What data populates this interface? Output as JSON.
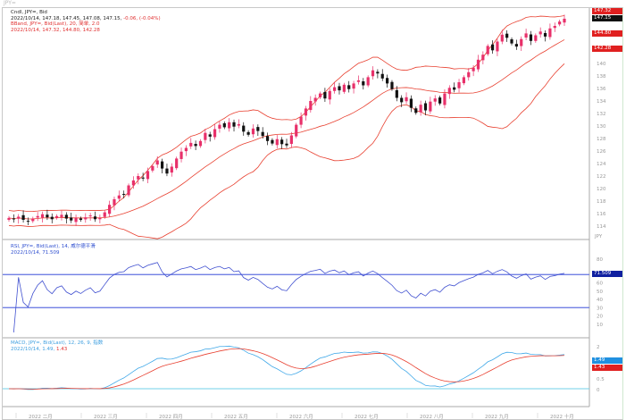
{
  "window_title": "JPY=",
  "price_panel": {
    "legend_line1": "Cndl, JPY=, Bid",
    "legend_line2_values": "2022/10/14, 147.18, 147.45, 147.08, 147.15,",
    "legend_line2_change": "-0.06, (-0.04%)",
    "legend_line3": "BBand, JPY=, Bid(Last), 20, 简单, 2.0",
    "legend_line4": "2022/10/14, 147.32, 144.80, 142.28",
    "tags": {
      "upper": "147.32",
      "last": "147.15",
      "mid": "144.80",
      "lower": "142.28"
    },
    "axis_labels": [
      "140",
      "138",
      "136",
      "134",
      "132",
      "130",
      "128",
      "126",
      "124",
      "122",
      "120",
      "118",
      "116",
      "114"
    ],
    "units_label": "JPY"
  },
  "rsi_panel": {
    "legend_line1": "RSI, JPY=, Bid(Last), 14, 威尔德平滑",
    "legend_line2": "2022/10/14, 71.509",
    "tag": "71.509",
    "axis_labels": [
      "80",
      "60",
      "50",
      "40",
      "30",
      "20",
      "10"
    ],
    "levels": [
      70,
      30
    ]
  },
  "macd_panel": {
    "legend_line1": "MACD, JPY=, Bid(Last), 12, 26, 9, 指数",
    "legend_line2_macd": "2022/10/14, 1.49,",
    "legend_line2_signal": "1.43",
    "tags": {
      "macd": "1.49",
      "signal": "1.43"
    },
    "axis_labels": [
      "2",
      "0.5",
      "0"
    ]
  },
  "x_axis": {
    "months": [
      "2022 二月",
      "2022 三月",
      "2022 四月",
      "2022 五月",
      "2022 六月",
      "2022 七月",
      "2022 八月",
      "2022 九月",
      "2022 十月"
    ]
  },
  "colors": {
    "up": "#e8306a",
    "down": "#111111",
    "band": "#e84030",
    "rsi": "#4050d0",
    "macd": "#40a8e8",
    "signal": "#e84030",
    "level": "#6070e0"
  },
  "chart_data": {
    "type": "candlestick",
    "closes": [
      115.3,
      115.1,
      115.5,
      115.0,
      114.8,
      115.2,
      115.6,
      115.9,
      115.4,
      115.1,
      115.6,
      115.8,
      115.2,
      114.9,
      115.3,
      115.0,
      115.4,
      115.7,
      115.1,
      115.3,
      116.2,
      117.4,
      118.3,
      118.9,
      119.1,
      120.5,
      121.3,
      122.0,
      121.6,
      122.8,
      123.6,
      124.5,
      123.2,
      122.4,
      123.5,
      124.8,
      125.9,
      126.5,
      127.3,
      126.8,
      127.6,
      128.9,
      128.3,
      129.5,
      130.2,
      129.8,
      130.6,
      129.9,
      130.3,
      129.1,
      128.6,
      129.6,
      129.2,
      128.4,
      127.6,
      127.2,
      127.9,
      127.1,
      126.9,
      128.5,
      130.2,
      131.5,
      132.8,
      134.0,
      134.5,
      135.2,
      134.4,
      135.6,
      136.2,
      135.7,
      136.6,
      135.9,
      136.8,
      137.3,
      136.5,
      137.8,
      138.9,
      138.4,
      137.6,
      136.8,
      135.9,
      134.5,
      133.8,
      134.6,
      132.9,
      132.1,
      133.4,
      132.5,
      133.9,
      134.4,
      133.6,
      135.2,
      136.1,
      135.8,
      137.0,
      137.8,
      138.6,
      139.3,
      140.6,
      141.4,
      142.8,
      142.1,
      143.5,
      144.6,
      144.1,
      143.2,
      142.7,
      143.9,
      144.8,
      143.6,
      144.5,
      145.1,
      144.3,
      145.6,
      146.0,
      146.7,
      147.15
    ],
    "indicators": [
      "Bollinger Bands (20, 2.0)",
      "RSI (14)",
      "MACD (12, 26, 9)"
    ]
  }
}
